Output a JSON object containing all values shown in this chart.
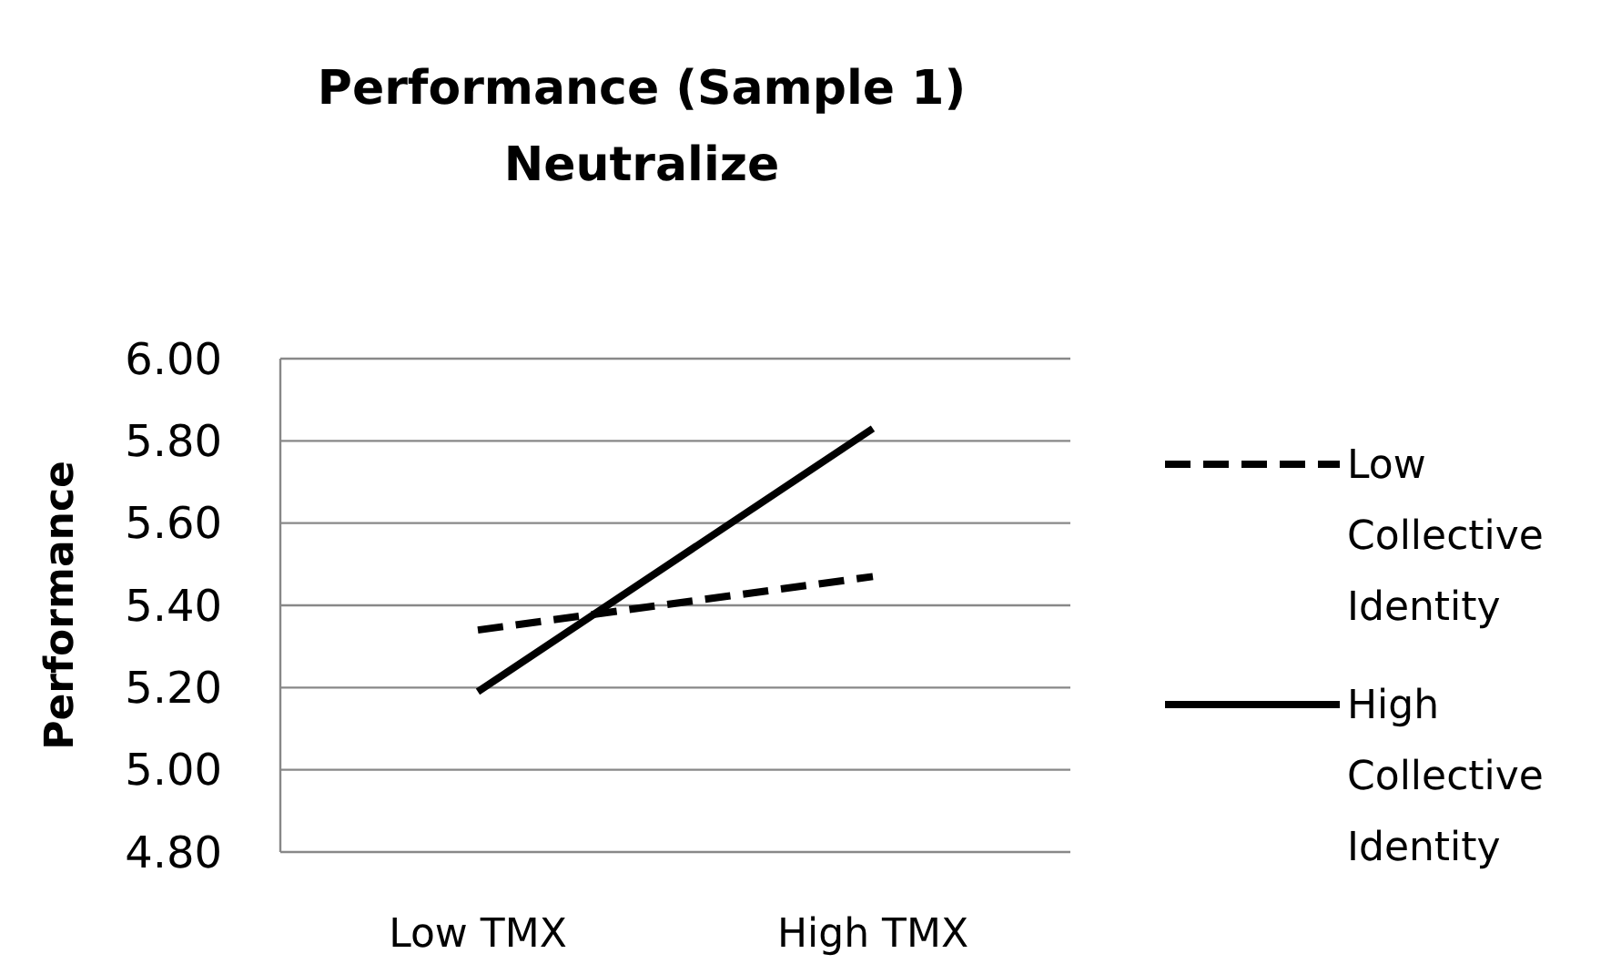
{
  "chart_data": {
    "type": "line",
    "title": "Performance (Sample 1)",
    "subtitle": "Neutralize",
    "ylabel": "Performance",
    "categories": [
      "Low TMX",
      "High TMX"
    ],
    "series": [
      {
        "name": "Low Collective Identity",
        "color": "#000000",
        "values": [
          5.34,
          5.47
        ],
        "line_style": "dashed"
      },
      {
        "name": "High Collective Identity",
        "color": "#000000",
        "values": [
          5.19,
          5.83
        ],
        "line_style": "solid"
      }
    ],
    "ylim": [
      4.8,
      6.0
    ],
    "yticks": [
      {
        "value": 4.8,
        "label": "4.80"
      },
      {
        "value": 5.0,
        "label": "5.00"
      },
      {
        "value": 5.2,
        "label": "5.20"
      },
      {
        "value": 5.4,
        "label": "5.40"
      },
      {
        "value": 5.6,
        "label": "5.60"
      },
      {
        "value": 5.8,
        "label": "5.80"
      },
      {
        "value": 6.0,
        "label": "6.00"
      }
    ],
    "grid": "y",
    "legend": "right",
    "marker": "none"
  }
}
